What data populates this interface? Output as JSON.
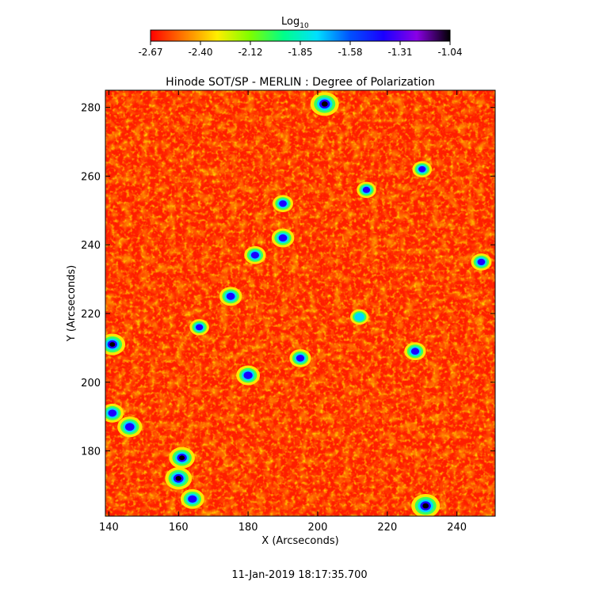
{
  "colorbar": {
    "label_main": "Log",
    "label_sub": "10",
    "ticks": [
      "-2.67",
      "-2.40",
      "-2.12",
      "-1.85",
      "-1.58",
      "-1.31",
      "-1.04"
    ],
    "colors": [
      "#ff0000",
      "#ff7a00",
      "#ffee00",
      "#7dff00",
      "#00ff8a",
      "#00e0ff",
      "#0050ff",
      "#1a00ff",
      "#8a00e6",
      "#000000"
    ]
  },
  "chart_data": {
    "type": "heatmap",
    "title": "Hinode SOT/SP - MERLIN : Degree of Polarization",
    "xlabel": "X (Arcseconds)",
    "ylabel": "Y (Arcseconds)",
    "xlim": [
      139,
      251
    ],
    "ylim": [
      161,
      285
    ],
    "xticks": [
      140,
      160,
      180,
      200,
      220,
      240
    ],
    "yticks": [
      180,
      200,
      220,
      240,
      260,
      280
    ],
    "color_scale": "log10",
    "color_range": [
      -2.67,
      -1.04
    ],
    "background_level": -2.67,
    "features": [
      {
        "x": 202,
        "y": 281,
        "level": -1.04
      },
      {
        "x": 231,
        "y": 164,
        "level": -1.04
      },
      {
        "x": 160,
        "y": 172,
        "level": -1.2
      },
      {
        "x": 161,
        "y": 178,
        "level": -1.3
      },
      {
        "x": 164,
        "y": 166,
        "level": -1.5
      },
      {
        "x": 141,
        "y": 211,
        "level": -1.3
      },
      {
        "x": 146,
        "y": 187,
        "level": -1.4
      },
      {
        "x": 141,
        "y": 191,
        "level": -1.6
      },
      {
        "x": 180,
        "y": 202,
        "level": -1.5
      },
      {
        "x": 175,
        "y": 225,
        "level": -1.6
      },
      {
        "x": 190,
        "y": 242,
        "level": -1.6
      },
      {
        "x": 182,
        "y": 237,
        "level": -1.7
      },
      {
        "x": 190,
        "y": 252,
        "level": -1.8
      },
      {
        "x": 195,
        "y": 207,
        "level": -1.7
      },
      {
        "x": 228,
        "y": 209,
        "level": -1.7
      },
      {
        "x": 247,
        "y": 235,
        "level": -1.8
      },
      {
        "x": 214,
        "y": 256,
        "level": -1.9
      },
      {
        "x": 230,
        "y": 262,
        "level": -1.9
      },
      {
        "x": 166,
        "y": 216,
        "level": -1.9
      },
      {
        "x": 212,
        "y": 219,
        "level": -2.0
      }
    ]
  },
  "timestamp": "11-Jan-2019 18:17:35.700"
}
